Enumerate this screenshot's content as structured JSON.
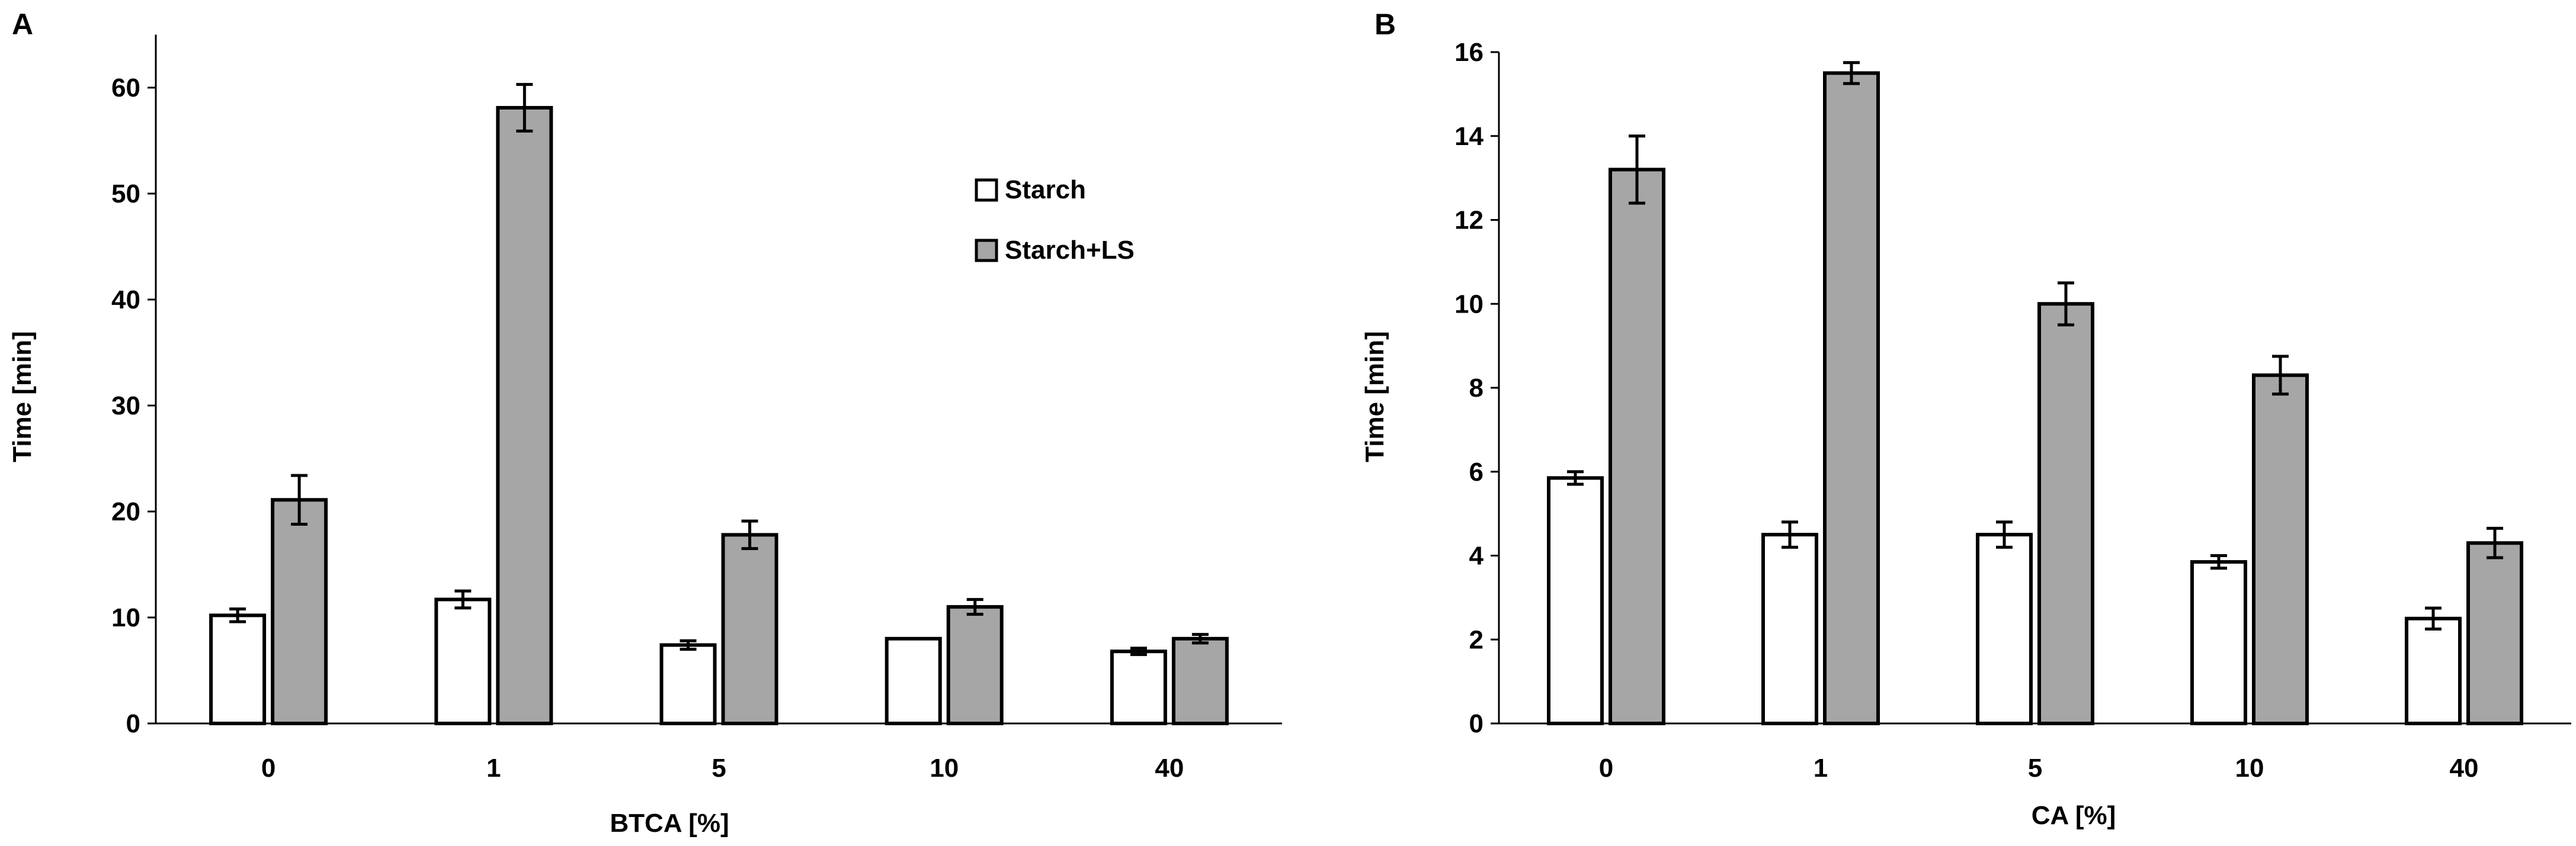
{
  "colors": {
    "starch_fill": "#ffffff",
    "starch_ls_fill": "#a6a6a6",
    "bar_stroke": "#000000",
    "axis": "#000000"
  },
  "legend": {
    "placement": "upper-right of panel A",
    "items": [
      {
        "label": "Starch",
        "color": "#ffffff"
      },
      {
        "label": "Starch+LS",
        "color": "#a6a6a6"
      }
    ]
  },
  "chart_data": [
    {
      "type": "bar",
      "panel_label": "A",
      "xlabel": "BTCA [%]",
      "ylabel": "Time [min]",
      "ylim": [
        0,
        65
      ],
      "yticks": [
        0,
        10,
        20,
        30,
        40,
        50,
        60
      ],
      "grid": false,
      "categories": [
        "0",
        "1",
        "5",
        "10",
        "40"
      ],
      "series": [
        {
          "name": "Starch",
          "values": [
            10.2,
            11.7,
            7.4,
            8.0,
            6.8
          ],
          "errors": [
            0.6,
            0.8,
            0.4,
            0.0,
            0.3
          ]
        },
        {
          "name": "Starch+LS",
          "values": [
            21.1,
            58.1,
            17.8,
            11.0,
            8.0
          ],
          "errors": [
            2.3,
            2.2,
            1.3,
            0.7,
            0.4
          ]
        }
      ]
    },
    {
      "type": "bar",
      "panel_label": "B",
      "xlabel": "CA [%]",
      "ylabel": "Time [min]",
      "ylim": [
        0,
        16
      ],
      "yticks": [
        0,
        2,
        4,
        6,
        8,
        10,
        12,
        14,
        16
      ],
      "grid": false,
      "categories": [
        "0",
        "1",
        "5",
        "10",
        "40"
      ],
      "series": [
        {
          "name": "Starch",
          "values": [
            5.85,
            4.5,
            4.5,
            3.85,
            2.5
          ],
          "errors": [
            0.15,
            0.3,
            0.3,
            0.15,
            0.25
          ]
        },
        {
          "name": "Starch+LS",
          "values": [
            13.2,
            15.5,
            10.0,
            8.3,
            4.3
          ],
          "errors": [
            0.8,
            0.25,
            0.5,
            0.45,
            0.35
          ]
        }
      ]
    }
  ]
}
